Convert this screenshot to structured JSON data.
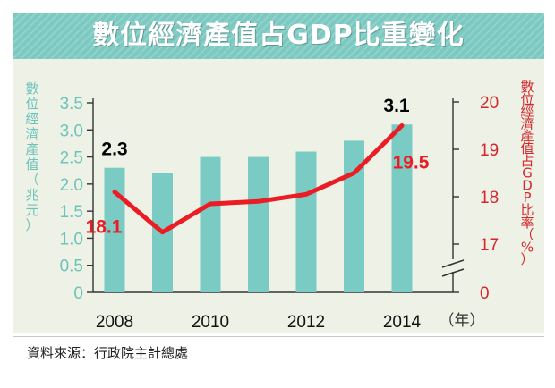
{
  "title": "數位經濟產值占GDP比重變化",
  "source": "資料來源：行政院主計總處",
  "colors": {
    "bar": "#79cbc4",
    "line": "#ec1c24",
    "left_axis": "#6dc3bb",
    "right_axis": "#d7262b",
    "panel": "#eef2e6",
    "header": "#7cc9c2"
  },
  "chart_data": {
    "type": "bar",
    "x": [
      2008,
      2009,
      2010,
      2011,
      2012,
      2013,
      2014
    ],
    "x_tick_labels": [
      "2008",
      "2010",
      "2012",
      "2014"
    ],
    "x_unit": "（年）",
    "left_axis": {
      "label": "數位經濟產值（兆元）",
      "range": [
        0,
        3.5
      ],
      "ticks": [
        "0",
        "0.5",
        "1.0",
        "1.5",
        "2.0",
        "2.5",
        "3.0",
        "3.5"
      ]
    },
    "right_axis": {
      "label": "數位經濟產值占GDP比率（%）",
      "ticks": [
        "0",
        "17",
        "18",
        "19",
        "20"
      ],
      "broken": true,
      "range": [
        16,
        20
      ]
    },
    "series": [
      {
        "type": "bar",
        "axis": "left",
        "values": [
          2.3,
          2.2,
          2.5,
          2.5,
          2.6,
          2.8,
          3.1
        ]
      },
      {
        "type": "line",
        "axis": "right",
        "values": [
          18.1,
          17.25,
          17.85,
          17.9,
          18.05,
          18.5,
          19.5
        ]
      }
    ],
    "annotations": [
      {
        "text": "2.3",
        "series": 0,
        "index": 0
      },
      {
        "text": "3.1",
        "series": 0,
        "index": 6
      },
      {
        "text": "18.1",
        "series": 1,
        "index": 0
      },
      {
        "text": "19.5",
        "series": 1,
        "index": 6
      }
    ],
    "grid": false
  }
}
